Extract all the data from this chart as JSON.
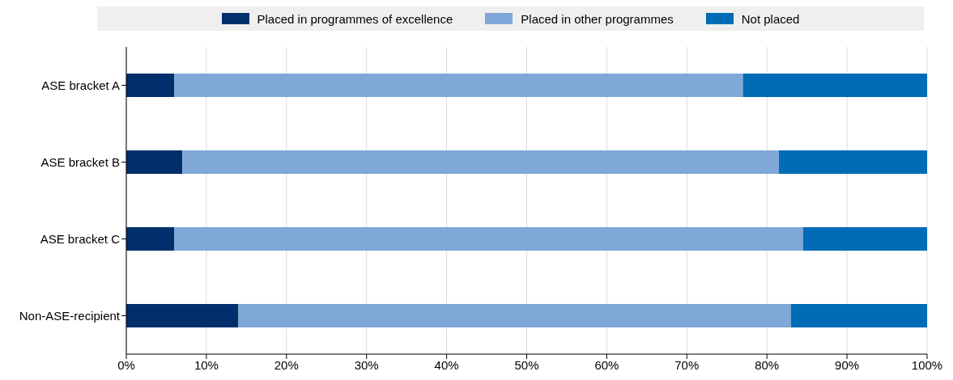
{
  "chart_data": {
    "type": "bar",
    "orientation": "horizontal",
    "stacked": true,
    "categories": [
      "ASE bracket A",
      "ASE bracket B",
      "ASE bracket C",
      "Non-ASE-recipient"
    ],
    "series": [
      {
        "name": "Placed in programmes of excellence",
        "color": "#002f6c",
        "values": [
          6,
          7,
          6,
          14
        ]
      },
      {
        "name": "Placed in other programmes",
        "color": "#7fa8d9",
        "values": [
          71,
          74.5,
          78.5,
          69
        ]
      },
      {
        "name": "Not placed",
        "color": "#006bb6",
        "values": [
          23,
          18.5,
          15.5,
          17
        ]
      }
    ],
    "xlim": [
      0,
      100
    ],
    "xticks": [
      {
        "value": 0,
        "label": "0%"
      },
      {
        "value": 10,
        "label": "10%"
      },
      {
        "value": 20,
        "label": "20%"
      },
      {
        "value": 30,
        "label": "30%"
      },
      {
        "value": 40,
        "label": "40%"
      },
      {
        "value": 50,
        "label": "50%"
      },
      {
        "value": 60,
        "label": "60%"
      },
      {
        "value": 70,
        "label": "70%"
      },
      {
        "value": 80,
        "label": "80%"
      },
      {
        "value": 90,
        "label": "90%"
      },
      {
        "value": 100,
        "label": "100%"
      }
    ],
    "grid": "x",
    "legend": "top"
  }
}
